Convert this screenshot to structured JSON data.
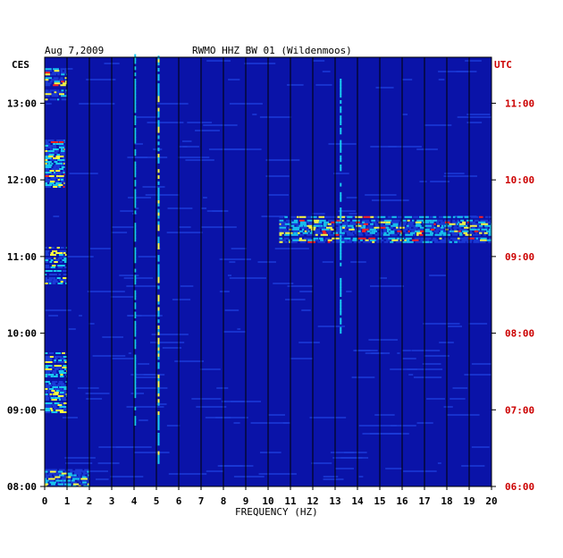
{
  "chart_data": {
    "type": "heatmap",
    "title": "RWMO HHZ BW 01 (Wildenmoos)",
    "date": "Aug 7,2009",
    "xlabel": "FREQUENCY (HZ)",
    "left_axis_label": "CES",
    "right_axis_label": "UTC",
    "xlim": [
      0,
      20
    ],
    "x_ticks": [
      "0",
      "1",
      "2",
      "3",
      "4",
      "5",
      "6",
      "7",
      "8",
      "9",
      "10",
      "11",
      "12",
      "13",
      "14",
      "15",
      "16",
      "17",
      "18",
      "19",
      "20"
    ],
    "left_ticks": [
      "13:00",
      "12:00",
      "11:00",
      "10:00",
      "09:00",
      "08:00"
    ],
    "right_ticks": [
      "11:00",
      "10:00",
      "09:00",
      "08:00",
      "07:00",
      "06:00"
    ],
    "time_range_hours": [
      8.0,
      13.6
    ],
    "colors": {
      "background": "#0a13a8",
      "low": "#1a3ad6",
      "mid": "#18c8f0",
      "high": "#ffff40",
      "peak": "#ff2020",
      "label_right": "#cc0000",
      "label_left": "#000000"
    },
    "hot_bands": [
      {
        "t_start": 13.05,
        "t_end": 13.48,
        "f_start": 0.0,
        "f_end": 1.0,
        "level": 3
      },
      {
        "t_start": 11.9,
        "t_end": 12.55,
        "f_start": 0.0,
        "f_end": 0.9,
        "level": 3
      },
      {
        "t_start": 11.2,
        "t_end": 11.55,
        "f_start": 10.5,
        "f_end": 20.0,
        "level": 3
      },
      {
        "t_start": 10.65,
        "t_end": 11.15,
        "f_start": 0.0,
        "f_end": 1.0,
        "level": 2
      },
      {
        "t_start": 8.95,
        "t_end": 9.75,
        "f_start": 0.0,
        "f_end": 1.0,
        "level": 2
      },
      {
        "t_start": 8.0,
        "t_end": 8.25,
        "f_start": 0.0,
        "f_end": 2.0,
        "level": 2
      }
    ],
    "lines": [
      {
        "f": 4.05,
        "t_start": 8.8,
        "t_end": 13.6,
        "level": 1
      },
      {
        "f": 5.1,
        "t_start": 8.3,
        "t_end": 13.6,
        "level": 2
      },
      {
        "f": 13.25,
        "t_start": 10.0,
        "t_end": 13.3,
        "level": 1
      }
    ]
  }
}
